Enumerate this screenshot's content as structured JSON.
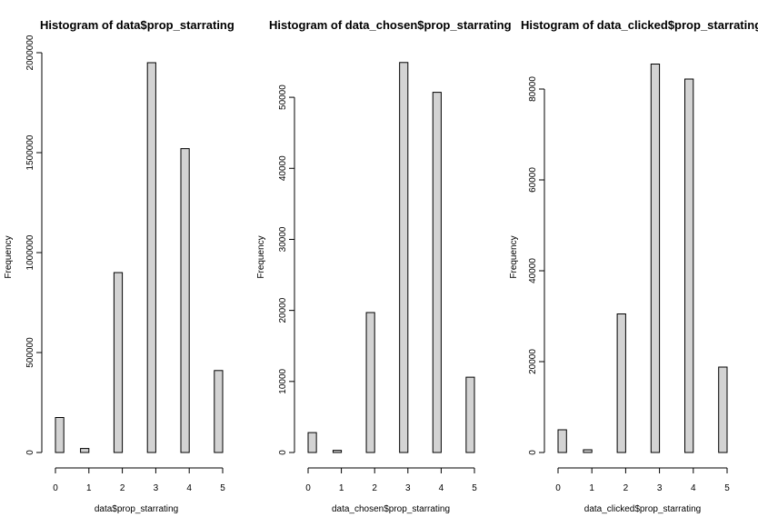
{
  "chart_data": [
    {
      "type": "bar",
      "title": "Histogram of data$prop_starrating",
      "xlabel": "data$prop_starrating",
      "ylabel": "Frequency",
      "x_ticks": [
        "0",
        "1",
        "2",
        "3",
        "4",
        "5"
      ],
      "y_ticks": [
        "0",
        "500000",
        "1000000",
        "1500000",
        "2000000"
      ],
      "y_tick_values": [
        0,
        500000,
        1000000,
        1500000,
        2000000
      ],
      "ylim": [
        0,
        2000000
      ],
      "xlim": [
        0,
        5
      ],
      "bins": [
        {
          "start": 0.0,
          "end": 0.25,
          "value": 175000
        },
        {
          "start": 0.75,
          "end": 1.0,
          "value": 20000
        },
        {
          "start": 1.75,
          "end": 2.0,
          "value": 900000
        },
        {
          "start": 2.75,
          "end": 3.0,
          "value": 1950000
        },
        {
          "start": 3.75,
          "end": 4.0,
          "value": 1520000
        },
        {
          "start": 4.75,
          "end": 5.0,
          "value": 410000
        }
      ],
      "bar_color": "#d3d3d3"
    },
    {
      "type": "bar",
      "title": "Histogram of data_chosen$prop_starrating",
      "xlabel": "data_chosen$prop_starrating",
      "ylabel": "Frequency",
      "x_ticks": [
        "0",
        "1",
        "2",
        "3",
        "4",
        "5"
      ],
      "y_ticks": [
        "0",
        "10000",
        "20000",
        "30000",
        "40000",
        "50000"
      ],
      "y_tick_values": [
        0,
        10000,
        20000,
        30000,
        40000,
        50000
      ],
      "ylim": [
        0,
        55000
      ],
      "xlim": [
        0,
        5
      ],
      "bins": [
        {
          "start": 0.0,
          "end": 0.25,
          "value": 2800
        },
        {
          "start": 0.75,
          "end": 1.0,
          "value": 300
        },
        {
          "start": 1.75,
          "end": 2.0,
          "value": 19700
        },
        {
          "start": 2.75,
          "end": 3.0,
          "value": 54900
        },
        {
          "start": 3.75,
          "end": 4.0,
          "value": 50700
        },
        {
          "start": 4.75,
          "end": 5.0,
          "value": 10600
        }
      ],
      "bar_color": "#d3d3d3"
    },
    {
      "type": "bar",
      "title": "Histogram of data_clicked$prop_starrating",
      "xlabel": "data_clicked$prop_starrating",
      "ylabel": "Frequency",
      "x_ticks": [
        "0",
        "1",
        "2",
        "3",
        "4",
        "5"
      ],
      "y_ticks": [
        "0",
        "20000",
        "40000",
        "60000",
        "80000"
      ],
      "y_tick_values": [
        0,
        20000,
        40000,
        60000,
        80000
      ],
      "ylim": [
        0,
        86000
      ],
      "xlim": [
        0,
        5
      ],
      "bins": [
        {
          "start": 0.0,
          "end": 0.25,
          "value": 5000
        },
        {
          "start": 0.75,
          "end": 1.0,
          "value": 600
        },
        {
          "start": 1.75,
          "end": 2.0,
          "value": 30500
        },
        {
          "start": 2.75,
          "end": 3.0,
          "value": 85500
        },
        {
          "start": 3.75,
          "end": 4.0,
          "value": 82200
        },
        {
          "start": 4.75,
          "end": 5.0,
          "value": 18800
        }
      ],
      "bar_color": "#d3d3d3"
    }
  ]
}
